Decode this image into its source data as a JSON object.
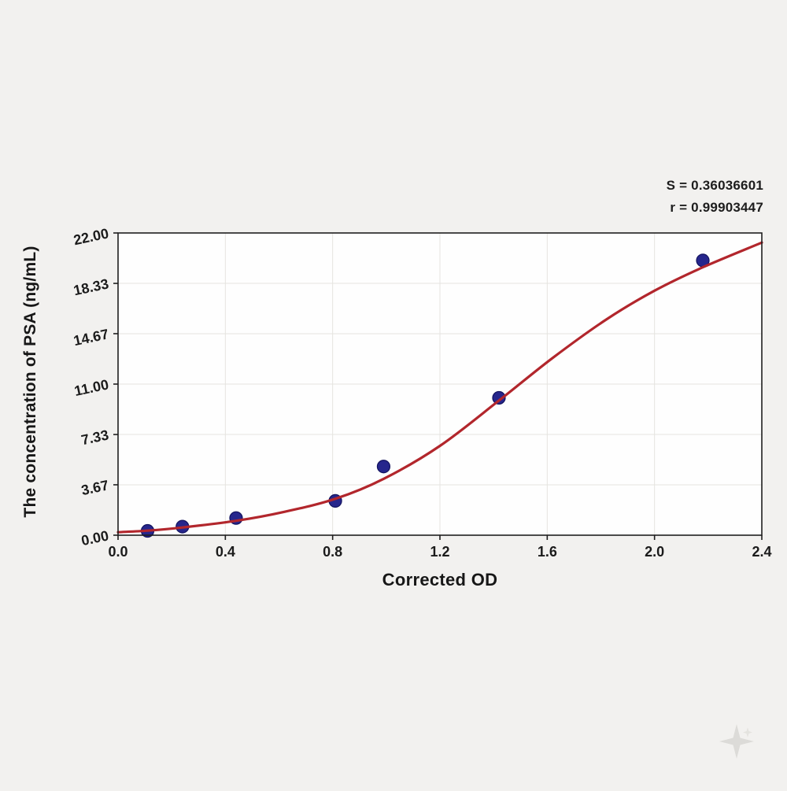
{
  "page": {
    "background": "#f2f1ef",
    "plot_background": "#fefefe",
    "axis_color": "#1f1f1f",
    "grid_color": "#e5e4e0"
  },
  "chart_data": {
    "type": "scatter",
    "title": "",
    "xlabel": "Corrected OD",
    "ylabel": "The concentration of PSA (ng/mL)",
    "xlim": [
      0.0,
      2.4
    ],
    "ylim": [
      0.0,
      22.0
    ],
    "grid": true,
    "legend_position": "none",
    "x_ticks": [
      {
        "v": 0.0,
        "label": "0.0"
      },
      {
        "v": 0.4,
        "label": "0.4"
      },
      {
        "v": 0.8,
        "label": "0.8"
      },
      {
        "v": 1.2,
        "label": "1.2"
      },
      {
        "v": 1.6,
        "label": "1.6"
      },
      {
        "v": 2.0,
        "label": "2.0"
      },
      {
        "v": 2.4,
        "label": "2.4"
      }
    ],
    "y_ticks": [
      {
        "v": 0.0,
        "label": "0.00"
      },
      {
        "v": 3.67,
        "label": "3.67"
      },
      {
        "v": 7.33,
        "label": "7.33"
      },
      {
        "v": 11.0,
        "label": "11.00"
      },
      {
        "v": 14.67,
        "label": "14.67"
      },
      {
        "v": 18.33,
        "label": "18.33"
      },
      {
        "v": 22.0,
        "label": "22.00"
      }
    ],
    "annotations": [
      "S = 0.36036601",
      "r = 0.99903447"
    ],
    "fit_stats": {
      "S": 0.36036601,
      "r": 0.99903447
    },
    "series": [
      {
        "name": "standard-points",
        "type": "scatter",
        "color": "#26268c",
        "edge_color": "#12125e",
        "points": [
          [
            0.11,
            0.313
          ],
          [
            0.24,
            0.625
          ],
          [
            0.44,
            1.25
          ],
          [
            0.81,
            2.5
          ],
          [
            0.99,
            5.0
          ],
          [
            1.42,
            10.0
          ],
          [
            2.18,
            20.0
          ]
        ]
      },
      {
        "name": "4pl-fit-curve",
        "type": "line",
        "color": "#b2262c",
        "points": [
          [
            0.0,
            0.22
          ],
          [
            0.11,
            0.33
          ],
          [
            0.24,
            0.56
          ],
          [
            0.44,
            1.05
          ],
          [
            0.62,
            1.7
          ],
          [
            0.81,
            2.65
          ],
          [
            0.99,
            4.1
          ],
          [
            1.2,
            6.5
          ],
          [
            1.42,
            9.8
          ],
          [
            1.62,
            12.9
          ],
          [
            1.82,
            15.7
          ],
          [
            2.0,
            17.8
          ],
          [
            2.18,
            19.5
          ],
          [
            2.4,
            21.3
          ]
        ]
      }
    ]
  }
}
